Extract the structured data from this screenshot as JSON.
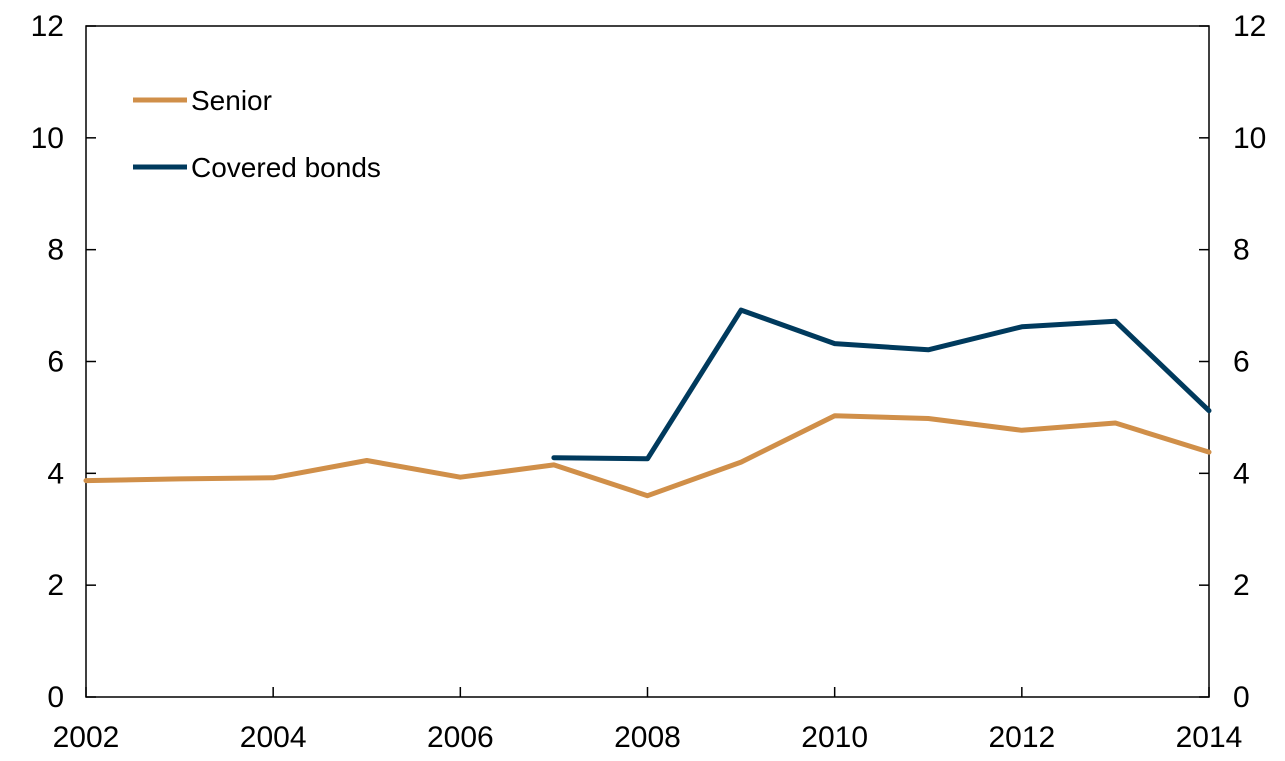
{
  "chart_data": {
    "type": "line",
    "title": "",
    "xlabel": "",
    "ylabel": "",
    "x": [
      2002,
      2003,
      2004,
      2005,
      2006,
      2007,
      2008,
      2009,
      2010,
      2011,
      2012,
      2013,
      2014
    ],
    "xlim": [
      2002,
      2014
    ],
    "ylim": [
      0,
      12
    ],
    "x_ticks": [
      "2002",
      "2004",
      "2006",
      "2008",
      "2010",
      "2012",
      "2014"
    ],
    "y_ticks": [
      "0",
      "2",
      "4",
      "6",
      "8",
      "10",
      "12"
    ],
    "secondary_y_ticks": [
      "0",
      "2",
      "4",
      "6",
      "8",
      "10",
      "12"
    ],
    "grid": false,
    "legend_position": "top-left",
    "series": [
      {
        "name": "Senior",
        "color": "#d08f49",
        "values": [
          3.87,
          3.9,
          3.92,
          4.23,
          3.93,
          4.15,
          3.6,
          4.2,
          5.03,
          4.98,
          4.77,
          4.9,
          4.38
        ]
      },
      {
        "name": "Covered bonds",
        "color": "#003a5d",
        "values": [
          null,
          null,
          null,
          null,
          null,
          4.28,
          4.26,
          6.92,
          6.32,
          6.21,
          6.62,
          6.72,
          5.12
        ]
      }
    ]
  }
}
